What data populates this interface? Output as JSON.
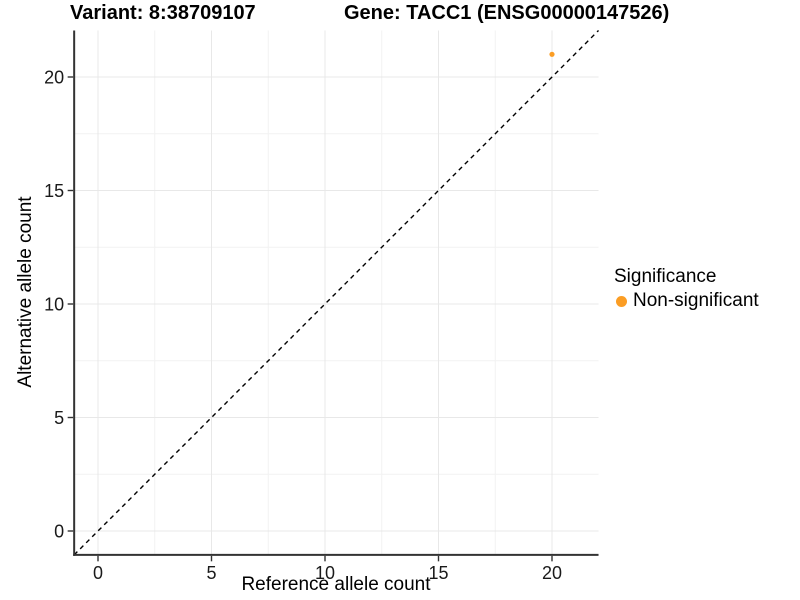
{
  "chart_data": {
    "type": "scatter",
    "title_left": "Variant: 8:38709107",
    "title_right": "Gene: TACC1 (ENSG00000147526)",
    "xlabel": "Reference allele count",
    "ylabel": "Alternative allele count",
    "xlim": [
      -1.05,
      22.05
    ],
    "ylim": [
      -1.05,
      22.05
    ],
    "xticks": [
      0,
      5,
      10,
      15,
      20
    ],
    "yticks": [
      0,
      5,
      10,
      15,
      20
    ],
    "grid": {
      "major": true,
      "minor": true
    },
    "points": [
      {
        "x": 20,
        "y": 21,
        "series": "Non-significant"
      }
    ],
    "reference_line": {
      "kind": "identity",
      "equation": "y = x",
      "style": "dashed",
      "color": "#000000"
    },
    "legend": {
      "title": "Significance",
      "position": "right",
      "entries": [
        {
          "label": "Non-significant",
          "color": "#FB9D24"
        }
      ]
    },
    "colors": {
      "point": "#FB9D24",
      "major_grid": "#E8E8E8",
      "minor_grid": "#F2F2F2",
      "axis": "#333333",
      "tick_text": "#1a1a1a"
    }
  }
}
